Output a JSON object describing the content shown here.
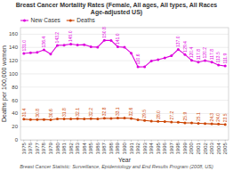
{
  "chart_data": {
    "type": "line",
    "title": "Breast Cancer Mortality Rates (Female, All ages, All types, All Races Age-adjusted US)",
    "x_label": "Year",
    "y_label": "Deaths per 100,000 women",
    "source": "Breast Cancer Statistic: Surveillance, Epidemiology and End Results Program (2008, US)",
    "x": [
      1975,
      1976,
      1977,
      1978,
      1979,
      1980,
      1981,
      1982,
      1983,
      1984,
      1985,
      1986,
      1987,
      1988,
      1989,
      1990,
      1991,
      1992,
      1993,
      1994,
      1995,
      1996,
      1997,
      1998,
      1999,
      2000,
      2001,
      2002,
      2003,
      2004,
      2005
    ],
    "series": [
      {
        "name": "New Cases",
        "color": "#dd00dd",
        "marker": "circle",
        "values": [
          131.0,
          132.0,
          132.5,
          136.4,
          129.9,
          143.2,
          143.5,
          145.0,
          143.8,
          144.2,
          140.9,
          140.5,
          150.8,
          150.6,
          141.0,
          140.2,
          131.4,
          110.6,
          110.8,
          119.6,
          121.4,
          124.1,
          127.4,
          137.0,
          129.4,
          120.4,
          117.8,
          120.2,
          117.8,
          113.5,
          111.9
        ],
        "value_labels": [
          "131.0",
          null,
          null,
          "136.4",
          null,
          "143.2",
          null,
          "145.0",
          null,
          null,
          null,
          null,
          "150.8",
          null,
          "141.0",
          null,
          null,
          "110.6",
          null,
          null,
          null,
          null,
          null,
          "137.0",
          "129.4",
          "120.4",
          "117.8",
          "120.2",
          "117.8",
          "113.5",
          "111.9"
        ]
      },
      {
        "name": "Deaths",
        "color": "#cc4400",
        "marker": "circle",
        "values": [
          31.4,
          30.9,
          30.8,
          31.0,
          30.6,
          31.9,
          31.8,
          31.8,
          32.1,
          31.8,
          32.2,
          31.8,
          32.8,
          32.5,
          33.1,
          33.2,
          32.6,
          30.6,
          29.5,
          28.4,
          28.0,
          27.9,
          27.2,
          26.8,
          25.9,
          25.7,
          25.1,
          24.7,
          24.3,
          24.0,
          23.5
        ],
        "value_labels": [
          "31.4",
          null,
          "30.8",
          null,
          "30.6",
          null,
          "31.8",
          null,
          "32.1",
          null,
          "32.2",
          null,
          "32.8",
          null,
          "33.1",
          null,
          "32.6",
          null,
          "29.5",
          null,
          "28.0",
          null,
          "27.2",
          null,
          "25.9",
          null,
          "25.1",
          null,
          "24.3",
          "24.0",
          "23.5"
        ]
      }
    ],
    "xlim": [
      1974.5,
      2005.5
    ],
    "xticks": [
      1975,
      1976,
      1977,
      1978,
      1979,
      1980,
      1981,
      1982,
      1983,
      1984,
      1985,
      1986,
      1987,
      1988,
      1989,
      1990,
      1991,
      1992,
      1993,
      1994,
      1995,
      1996,
      1997,
      1998,
      1999,
      2000,
      2001,
      2002,
      2003,
      2004,
      2005
    ],
    "ylim": [
      0,
      170
    ],
    "yticks": [
      0,
      20,
      40,
      60,
      80,
      100,
      120,
      140,
      160
    ],
    "grid": true,
    "legend": "upper left",
    "data_labels": true
  }
}
